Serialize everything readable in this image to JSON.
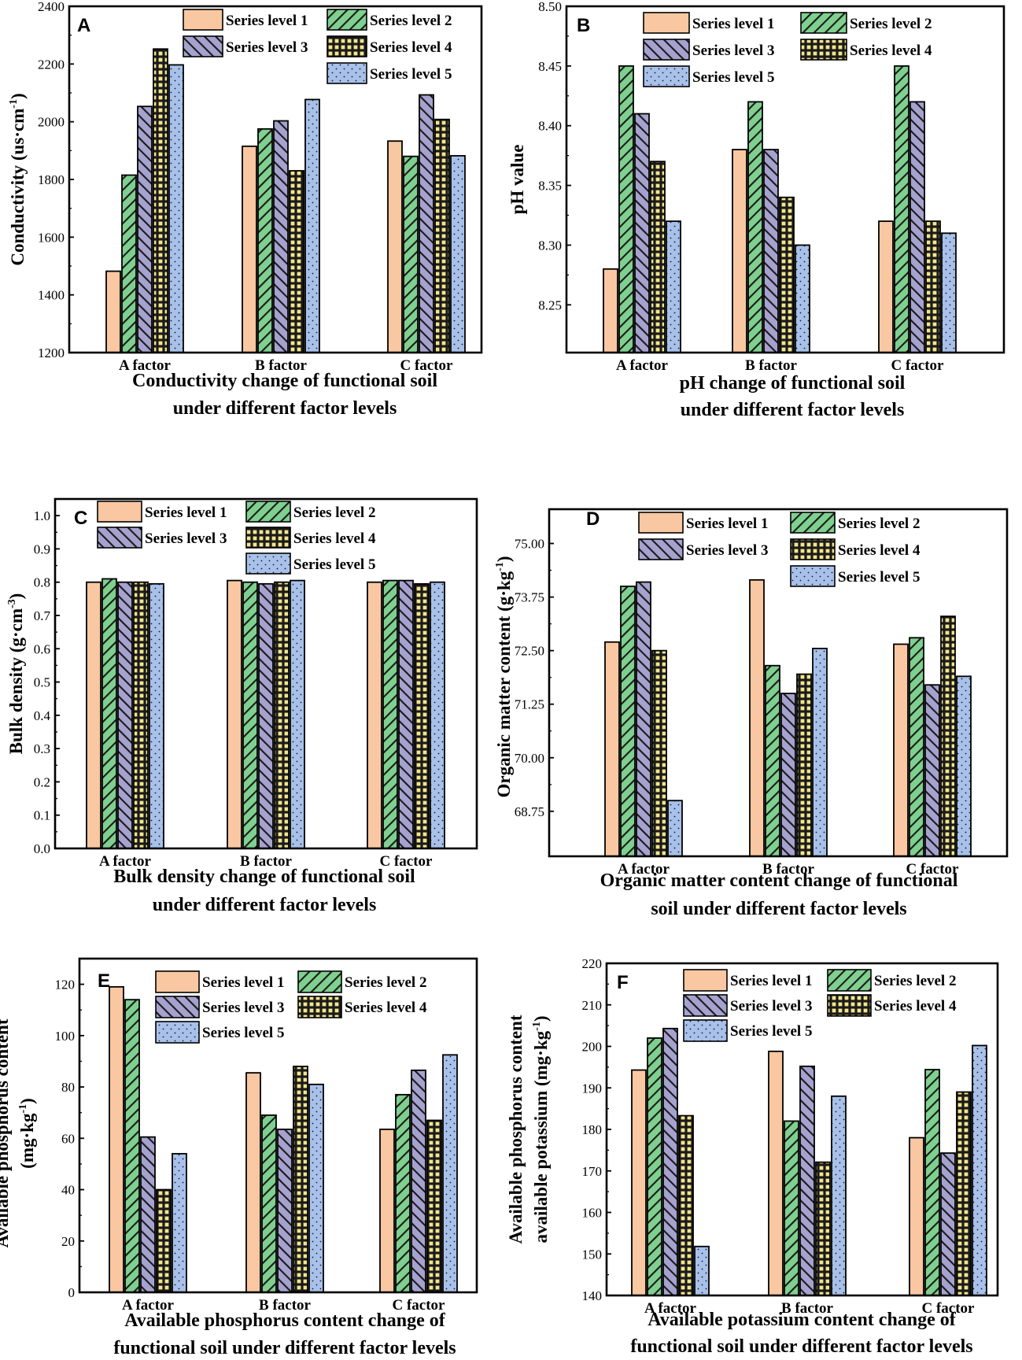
{
  "legend": [
    "Series level 1",
    "Series level 2",
    "Series level 3",
    "Series level 4",
    "Series level 5"
  ],
  "series_colors": [
    "#f9c7a1",
    "#7fd08f",
    "#a6a2cf",
    "#f3e58a",
    "#a8c1ea"
  ],
  "chart_data": [
    {
      "panel": "A",
      "type": "bar",
      "categories": [
        "A factor",
        "B factor",
        "C factor"
      ],
      "series": [
        {
          "name": "Series level 1",
          "values": [
            1482,
            1915,
            1933
          ]
        },
        {
          "name": "Series level 2",
          "values": [
            1815,
            1975,
            1880
          ]
        },
        {
          "name": "Series level 3",
          "values": [
            2053,
            2003,
            2093
          ]
        },
        {
          "name": "Series level 4",
          "values": [
            2252,
            1830,
            2008
          ]
        },
        {
          "name": "Series level 5",
          "values": [
            2197,
            2077,
            1882
          ]
        }
      ],
      "ylim": [
        1200,
        2400
      ],
      "yticks": [
        1200,
        1400,
        1600,
        1800,
        2000,
        2200,
        2400
      ],
      "ytick_labels": [
        "1200",
        "1400",
        "1600",
        "1800",
        "2000",
        "2200",
        "2400"
      ],
      "ylabel_parts": [
        "Conductivity (us·cm",
        "-1",
        ")"
      ],
      "caption": [
        "Conductivity change of functional soil",
        "under different factor levels"
      ]
    },
    {
      "panel": "B",
      "type": "bar",
      "categories": [
        "A factor",
        "B factor",
        "C factor"
      ],
      "series": [
        {
          "name": "Series level 1",
          "values": [
            8.28,
            8.38,
            8.32
          ]
        },
        {
          "name": "Series level 2",
          "values": [
            8.45,
            8.42,
            8.45
          ]
        },
        {
          "name": "Series level 3",
          "values": [
            8.41,
            8.38,
            8.42
          ]
        },
        {
          "name": "Series level 4",
          "values": [
            8.37,
            8.34,
            8.32
          ]
        },
        {
          "name": "Series level 5",
          "values": [
            8.32,
            8.3,
            8.31
          ]
        }
      ],
      "ylim": [
        8.21,
        8.5
      ],
      "yticks": [
        8.25,
        8.3,
        8.35,
        8.4,
        8.45,
        8.5
      ],
      "ytick_labels": [
        "8.25",
        "8.30",
        "8.35",
        "8.40",
        "8.45",
        "8.50"
      ],
      "ylabel_parts": [
        "pH value"
      ],
      "caption": [
        "pH change of functional soil",
        "under different factor levels"
      ]
    },
    {
      "panel": "C",
      "type": "bar",
      "categories": [
        "A factor",
        "B factor",
        "C factor"
      ],
      "series": [
        {
          "name": "Series level 1",
          "values": [
            0.8,
            0.805,
            0.8
          ]
        },
        {
          "name": "Series level 2",
          "values": [
            0.81,
            0.8,
            0.805
          ]
        },
        {
          "name": "Series level 3",
          "values": [
            0.8,
            0.795,
            0.805
          ]
        },
        {
          "name": "Series level 4",
          "values": [
            0.8,
            0.8,
            0.795
          ]
        },
        {
          "name": "Series level 5",
          "values": [
            0.795,
            0.805,
            0.8
          ]
        }
      ],
      "ylim": [
        0,
        1.05
      ],
      "yticks": [
        0.0,
        0.1,
        0.2,
        0.3,
        0.4,
        0.5,
        0.6,
        0.7,
        0.8,
        0.9,
        1.0
      ],
      "ytick_labels": [
        "0.0",
        "0.1",
        "0.2",
        "0.3",
        "0.4",
        "0.5",
        "0.6",
        "0.7",
        "0.8",
        "0.9",
        "1.0"
      ],
      "ylabel_parts": [
        "Bulk density  (g·cm",
        "-3",
        ")"
      ],
      "caption": [
        "Bulk density change of functional soil",
        "under different factor levels"
      ]
    },
    {
      "panel": "D",
      "type": "bar",
      "categories": [
        "A factor",
        "B factor",
        "C factor"
      ],
      "series": [
        {
          "name": "Series level 1",
          "values": [
            72.7,
            74.15,
            72.65
          ]
        },
        {
          "name": "Series level 2",
          "values": [
            74.0,
            72.15,
            72.8
          ]
        },
        {
          "name": "Series level 3",
          "values": [
            74.1,
            71.5,
            71.7
          ]
        },
        {
          "name": "Series level 4",
          "values": [
            72.5,
            71.95,
            73.3
          ]
        },
        {
          "name": "Series level 5",
          "values": [
            69.0,
            72.55,
            71.9
          ]
        }
      ],
      "ylim": [
        67.7,
        75.8
      ],
      "yticks": [
        68.75,
        70.0,
        71.25,
        72.5,
        73.75,
        75.0
      ],
      "ytick_labels": [
        "68.75",
        "70.00",
        "71.25",
        "72.50",
        "73.75",
        "75.00"
      ],
      "ylabel_parts": [
        "Organic matter content  (g·kg",
        "-1",
        ")"
      ],
      "caption": [
        "Organic matter content change of functional",
        "soil under different factor levels"
      ]
    },
    {
      "panel": "E",
      "type": "bar",
      "categories": [
        "A factor",
        "B factor",
        "C factor"
      ],
      "series": [
        {
          "name": "Series level 1",
          "values": [
            119,
            85.5,
            63.5
          ]
        },
        {
          "name": "Series level 2",
          "values": [
            114,
            69,
            77
          ]
        },
        {
          "name": "Series level 3",
          "values": [
            60.5,
            63.5,
            86.5
          ]
        },
        {
          "name": "Series level 4",
          "values": [
            40,
            88,
            67
          ]
        },
        {
          "name": "Series level 5",
          "values": [
            54,
            81,
            92.5
          ]
        }
      ],
      "ylim": [
        0,
        130
      ],
      "yticks": [
        0,
        20,
        40,
        60,
        80,
        100,
        120
      ],
      "ytick_labels": [
        "0",
        "20",
        "40",
        "60",
        "80",
        "100",
        "120"
      ],
      "ylabel_parts": [
        "Available phosphorus content",
        "(mg·kg",
        "-1",
        ")"
      ],
      "caption": [
        "Available phosphorus content change of",
        "functional soil under different factor levels"
      ]
    },
    {
      "panel": "F",
      "type": "bar",
      "categories": [
        "A factor",
        "B factor",
        "C factor"
      ],
      "series": [
        {
          "name": "Series level 1",
          "values": [
            194.3,
            198.8,
            178
          ]
        },
        {
          "name": "Series level 2",
          "values": [
            202,
            182,
            194.4
          ]
        },
        {
          "name": "Series level 3",
          "values": [
            204.3,
            195.2,
            174.3
          ]
        },
        {
          "name": "Series level 4",
          "values": [
            183.3,
            172.1,
            189
          ]
        },
        {
          "name": "Series level 5",
          "values": [
            151.8,
            188,
            200.2
          ]
        }
      ],
      "ylim": [
        140,
        220
      ],
      "yticks": [
        140,
        150,
        160,
        170,
        180,
        190,
        200,
        210,
        220
      ],
      "ytick_labels": [
        "140",
        "150",
        "160",
        "170",
        "180",
        "190",
        "200",
        "210",
        "220"
      ],
      "ylabel_parts": [
        "Available phosphorus content",
        "available potassium  (mg·kg",
        "-1",
        ")"
      ],
      "caption": [
        "Available potassium content change of",
        "functional soil under different factor levels"
      ]
    }
  ]
}
